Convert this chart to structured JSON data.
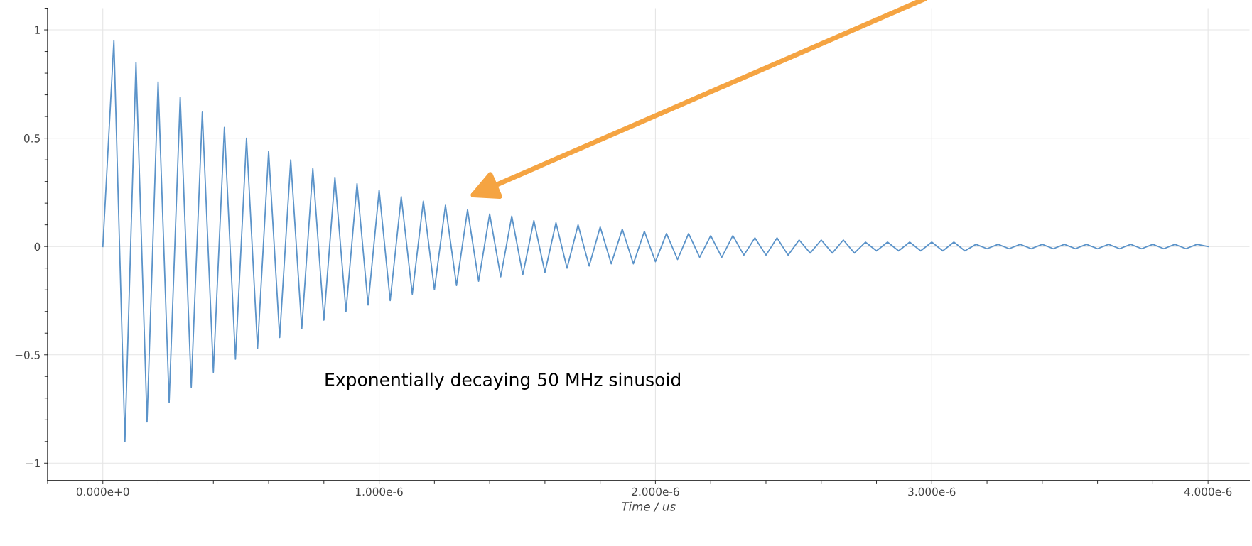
{
  "chart_data": {
    "type": "line",
    "xlabel": "Time / us",
    "annotations": [
      "Exponentially decaying 50 MHz sinusoid"
    ],
    "x": [
      0,
      4e-08,
      8e-08,
      1.2e-07,
      1.6e-07,
      2e-07,
      2.4e-07,
      2.8e-07,
      3.2e-07,
      3.6e-07,
      4e-07,
      4.4e-07,
      4.8e-07,
      5.2e-07,
      5.6e-07,
      6e-07,
      6.4e-07,
      6.8e-07,
      7.2e-07,
      7.6e-07,
      8e-07,
      8.4e-07,
      8.8e-07,
      9.2e-07,
      9.6e-07,
      1e-06,
      1.04e-06,
      1.08e-06,
      1.12e-06,
      1.16e-06,
      1.2e-06,
      1.24e-06,
      1.28e-06,
      1.32e-06,
      1.36e-06,
      1.4e-06,
      1.44e-06,
      1.48e-06,
      1.52e-06,
      1.56e-06,
      1.6e-06,
      1.64e-06,
      1.68e-06,
      1.72e-06,
      1.76e-06,
      1.8e-06,
      1.84e-06,
      1.88e-06,
      1.92e-06,
      1.96e-06,
      2e-06,
      2.04e-06,
      2.08e-06,
      2.12e-06,
      2.16e-06,
      2.2e-06,
      2.24e-06,
      2.28e-06,
      2.32e-06,
      2.36e-06,
      2.4e-06,
      2.44e-06,
      2.48e-06,
      2.52e-06,
      2.56e-06,
      2.6e-06,
      2.64e-06,
      2.68e-06,
      2.72e-06,
      2.76e-06,
      2.8e-06,
      2.84e-06,
      2.88e-06,
      2.92e-06,
      2.96e-06,
      3e-06,
      3.04e-06,
      3.08e-06,
      3.12e-06,
      3.16e-06,
      3.2e-06,
      3.24e-06,
      3.28e-06,
      3.32e-06,
      3.36e-06,
      3.4e-06,
      3.44e-06,
      3.48e-06,
      3.52e-06,
      3.56e-06,
      3.6e-06,
      3.64e-06,
      3.68e-06,
      3.72e-06,
      3.76e-06,
      3.8e-06,
      3.84e-06,
      3.88e-06,
      3.92e-06,
      3.96e-06,
      4e-06
    ],
    "series": [
      {
        "color": "#5b93c9",
        "values": [
          0,
          0.95,
          -0.9,
          0.85,
          -0.81,
          0.76,
          -0.72,
          0.69,
          -0.65,
          0.62,
          -0.58,
          0.55,
          -0.52,
          0.5,
          -0.47,
          0.44,
          -0.42,
          0.4,
          -0.38,
          0.36,
          -0.34,
          0.32,
          -0.3,
          0.29,
          -0.27,
          0.26,
          -0.25,
          0.23,
          -0.22,
          0.21,
          -0.2,
          0.19,
          -0.18,
          0.17,
          -0.16,
          0.15,
          -0.14,
          0.14,
          -0.13,
          0.12,
          -0.12,
          0.11,
          -0.1,
          0.1,
          -0.09,
          0.09,
          -0.08,
          0.08,
          -0.08,
          0.07,
          -0.07,
          0.06,
          -0.06,
          0.06,
          -0.05,
          0.05,
          -0.05,
          0.05,
          -0.04,
          0.04,
          -0.04,
          0.04,
          -0.04,
          0.03,
          -0.03,
          0.03,
          -0.03,
          0.03,
          -0.03,
          0.02,
          -0.02,
          0.02,
          -0.02,
          0.02,
          -0.02,
          0.02,
          -0.02,
          0.02,
          -0.02,
          0.01,
          -0.01,
          0.01,
          -0.01,
          0.01,
          -0.01,
          0.01,
          -0.01,
          0.01,
          -0.01,
          0.01,
          -0.01,
          0.01,
          -0.01,
          0.01,
          -0.01,
          0.01,
          -0.01,
          0.01,
          -0.01,
          0.01,
          0
        ]
      }
    ],
    "xlim": [
      -2e-07,
      4.15e-06
    ],
    "ylim": [
      -1.08,
      1.1
    ],
    "xticks": [
      {
        "value": 0,
        "label": "0.000e+0"
      },
      {
        "value": 1e-06,
        "label": "1.000e-6"
      },
      {
        "value": 2e-06,
        "label": "2.000e-6"
      },
      {
        "value": 3e-06,
        "label": "3.000e-6"
      },
      {
        "value": 4e-06,
        "label": "4.000e-6"
      }
    ],
    "yticks": [
      {
        "value": -1,
        "label": "−1"
      },
      {
        "value": -0.5,
        "label": "−0.5"
      },
      0,
      0.5,
      1
    ],
    "grid": true,
    "legend": false,
    "marker": "none",
    "line_style": "solid"
  }
}
